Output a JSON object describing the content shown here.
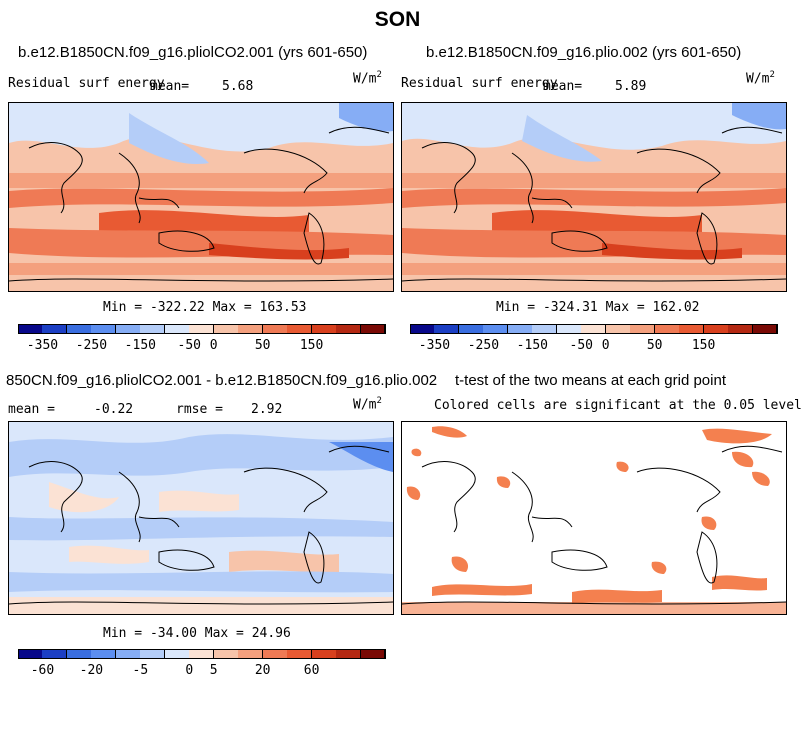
{
  "figure": {
    "season": "SON",
    "units_prefix": "W/m",
    "units_exp": "2"
  },
  "panels": {
    "a": {
      "title": "b.e12.B1850CN.f09_g16.pliolCO2.001 (yrs 601-650)",
      "variable": "Residual surf energy",
      "mean_label": "mean=",
      "mean_value": "5.68",
      "minmax": "Min = -322.22 Max = 163.53"
    },
    "b": {
      "title": "b.e12.B1850CN.f09_g16.plio.002 (yrs 601-650)",
      "variable": "Residual surf energy",
      "mean_label": "mean=",
      "mean_value": "5.89",
      "minmax": "Min = -324.31 Max = 162.02"
    },
    "c": {
      "title": "850CN.f09_g16.pliolCO2.001 - b.e12.B1850CN.f09_g16.plio.002",
      "mean_label": "mean =",
      "mean_value": "-0.22",
      "rmse_label": "rmse =",
      "rmse_value": "2.92",
      "minmax": "Min = -34.00 Max = 24.96"
    },
    "d": {
      "title": "t-test of the two means at each grid point",
      "subtitle": "Colored cells are significant at the 0.05 level"
    }
  },
  "chart_data": [
    {
      "type": "heatmap",
      "title": "b.e12.B1850CN.f09_g16.pliolCO2.001 (yrs 601-650)",
      "field": "Residual surf energy",
      "units": "W/m2",
      "mean": 5.68,
      "min": -322.22,
      "max": 163.53,
      "colorbar": {
        "ticks": [
          "-350",
          "-250",
          "-150",
          "-50",
          "0",
          "50",
          "150"
        ],
        "colors": [
          "#08088a",
          "#1c3fc4",
          "#3a6ee0",
          "#5c8ef0",
          "#86adf5",
          "#b4cdf8",
          "#dae7fb",
          "#fbe2d4",
          "#f7c4aa",
          "#f4a07e",
          "#ef7a55",
          "#e85a33",
          "#d8401e",
          "#b42812",
          "#7a0a05"
        ]
      }
    },
    {
      "type": "heatmap",
      "title": "b.e12.B1850CN.f09_g16.plio.002 (yrs 601-650)",
      "field": "Residual surf energy",
      "units": "W/m2",
      "mean": 5.89,
      "min": -324.31,
      "max": 162.02,
      "colorbar": {
        "ticks": [
          "-350",
          "-250",
          "-150",
          "-50",
          "0",
          "50",
          "150"
        ],
        "colors": [
          "#08088a",
          "#1c3fc4",
          "#3a6ee0",
          "#5c8ef0",
          "#86adf5",
          "#b4cdf8",
          "#dae7fb",
          "#fbe2d4",
          "#f7c4aa",
          "#f4a07e",
          "#ef7a55",
          "#e85a33",
          "#d8401e",
          "#b42812",
          "#7a0a05"
        ]
      }
    },
    {
      "type": "heatmap",
      "title": "850CN.f09_g16.pliolCO2.001 - b.e12.B1850CN.f09_g16.plio.002",
      "field": "difference",
      "units": "W/m2",
      "mean": -0.22,
      "rmse": 2.92,
      "min": -34.0,
      "max": 24.96,
      "colorbar": {
        "ticks": [
          "-60",
          "-20",
          "-5",
          "0",
          "5",
          "20",
          "60"
        ],
        "colors": [
          "#08088a",
          "#1c3fc4",
          "#3a6ee0",
          "#5c8ef0",
          "#86adf5",
          "#b4cdf8",
          "#dae7fb",
          "#fbe2d4",
          "#f7c4aa",
          "#f4a07e",
          "#ef7a55",
          "#e85a33",
          "#d8401e",
          "#b42812",
          "#7a0a05"
        ]
      }
    },
    {
      "type": "heatmap",
      "title": "t-test of the two means at each grid point",
      "field": "significance mask",
      "significance_level": 0.05
    }
  ]
}
